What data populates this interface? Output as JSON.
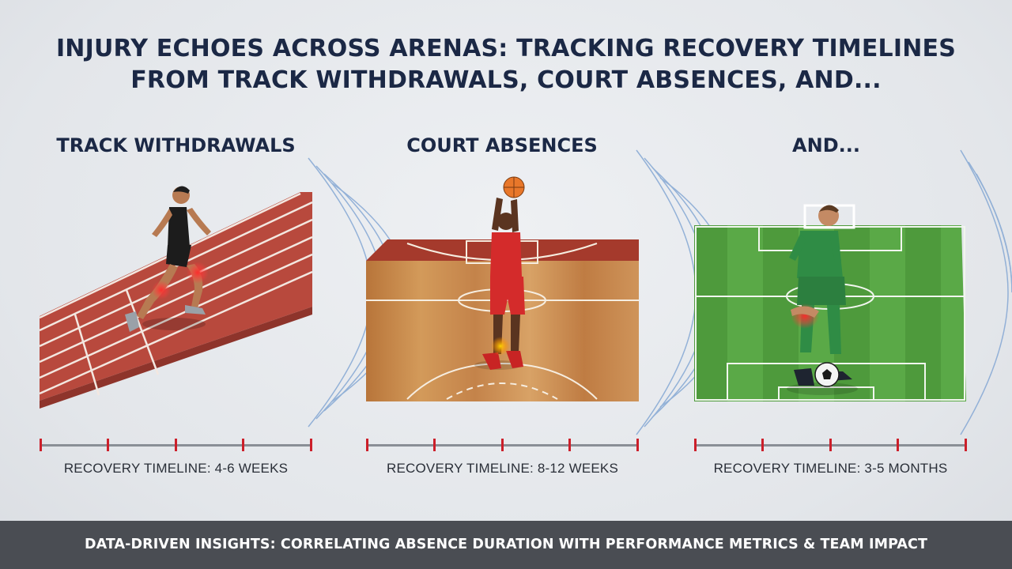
{
  "title": {
    "line1": "INJURY ECHOES ACROSS ARENAS: TRACKING RECOVERY TIMELINES",
    "line2": "FROM TRACK WITHDRAWALS, COURT ABSENCES, AND..."
  },
  "panels": [
    {
      "heading": "TRACK WITHDRAWALS",
      "timeline_label": "RECOVERY TIMELINE: 4-6 WEEKS"
    },
    {
      "heading": "COURT ABSENCES",
      "timeline_label": "RECOVERY TIMELINE: 8-12 WEEKS"
    },
    {
      "heading": "AND...",
      "timeline_label": "RECOVERY TIMELINE: 3-5 MONTHS"
    }
  ],
  "footer": {
    "text": "DATA-DRIVEN INSIGHTS: CORRELATING ABSENCE DURATION WITH PERFORMANCE METRICS & TEAM IMPACT"
  },
  "colors": {
    "title": "#1b2845",
    "track": "#b5473c",
    "court": "#c98a4a",
    "pitch": "#4e9a3c",
    "timeline_tick": "#cc1f2a",
    "footer_bg": "#4a4d53"
  },
  "icons": [
    "runner-figure",
    "basketball-player-figure",
    "soccer-player-figure",
    "injury-glow-icon",
    "echo-wave-icon"
  ]
}
